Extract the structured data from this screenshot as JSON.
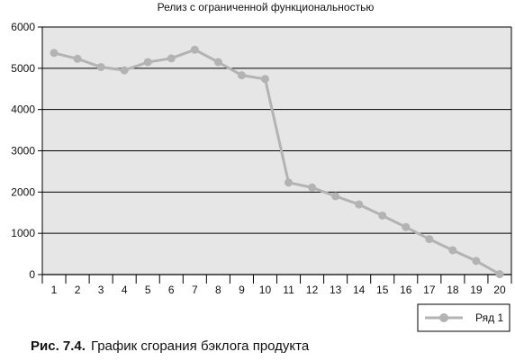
{
  "chart_data": {
    "type": "line",
    "title": "Релиз с ограниченной функциональностью",
    "xlabel": "",
    "ylabel": "",
    "x": [
      "1",
      "2",
      "3",
      "4",
      "5",
      "6",
      "7",
      "8",
      "9",
      "10",
      "11",
      "12",
      "13",
      "14",
      "15",
      "16",
      "17",
      "18",
      "19",
      "20"
    ],
    "ylim": [
      0,
      6000
    ],
    "yticks": [
      "0",
      "1000",
      "2000",
      "3000",
      "4000",
      "5000",
      "6000"
    ],
    "grid": true,
    "legend": "bottom-right",
    "series": [
      {
        "name": "Ряд 1",
        "color": "#b3b3b3",
        "values": [
          5370,
          5230,
          5030,
          4950,
          5150,
          5240,
          5450,
          5150,
          4830,
          4740,
          2230,
          2110,
          1900,
          1700,
          1430,
          1150,
          860,
          590,
          330,
          10
        ]
      }
    ]
  },
  "caption": {
    "figure_number": "Рис. 7.4.",
    "text": "График сгорания бэклога продукта"
  },
  "colors": {
    "plot_background": "#e6e6e6",
    "gridline": "#000000",
    "series_line": "#b3b3b3"
  }
}
